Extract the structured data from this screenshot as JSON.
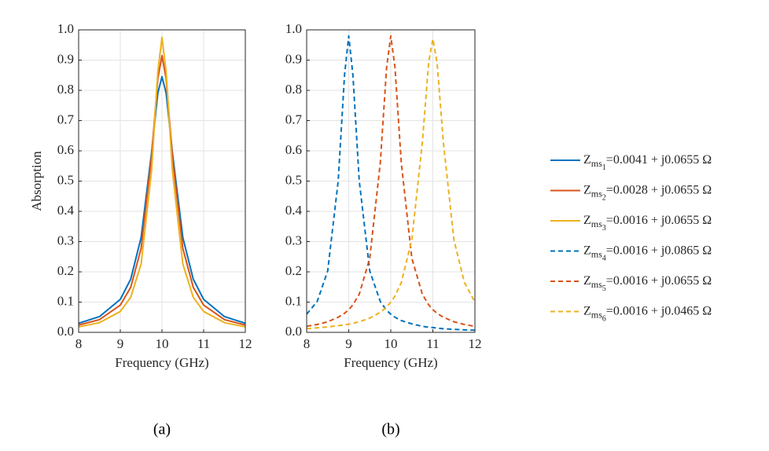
{
  "chart_data": [
    {
      "type": "line",
      "caption": "(a)",
      "xlabel": "Frequency (GHz)",
      "ylabel": "Absorption",
      "x": [
        8,
        8.5,
        9,
        9.25,
        9.5,
        9.75,
        9.9,
        10,
        10.1,
        10.25,
        10.5,
        10.75,
        11,
        11.5,
        12
      ],
      "series": [
        {
          "name": [
            "Z",
            "ms",
            "1",
            "=0.0041 + j0.0655 Ω"
          ],
          "color": "#0072BD",
          "dashed": false,
          "values": [
            0.03,
            0.052,
            0.109,
            0.176,
            0.314,
            0.594,
            0.791,
            0.845,
            0.791,
            0.594,
            0.314,
            0.176,
            0.109,
            0.052,
            0.03
          ]
        },
        {
          "name": [
            "Z",
            "ms",
            "2",
            "=0.0028 + j0.0655 Ω"
          ],
          "color": "#D95319",
          "dashed": false,
          "values": [
            0.024,
            0.042,
            0.09,
            0.149,
            0.278,
            0.582,
            0.838,
            0.915,
            0.838,
            0.582,
            0.278,
            0.149,
            0.09,
            0.042,
            0.024
          ]
        },
        {
          "name": [
            "Z",
            "ms",
            "3",
            "=0.0016 + j0.0655 Ω"
          ],
          "color": "#EDB120",
          "dashed": false,
          "values": [
            0.018,
            0.032,
            0.069,
            0.116,
            0.226,
            0.534,
            0.861,
            0.975,
            0.861,
            0.534,
            0.226,
            0.116,
            0.069,
            0.032,
            0.018
          ]
        }
      ],
      "xlim": [
        8,
        12
      ],
      "xticks": [
        8,
        9,
        10,
        11,
        12
      ],
      "ylim": [
        0,
        1
      ],
      "yticks": [
        {
          "value": 0,
          "label": "0.0"
        },
        0.1,
        0.2,
        0.3,
        0.4,
        0.5,
        0.6,
        0.7,
        0.8,
        0.9,
        {
          "value": 1,
          "label": "1.0"
        }
      ],
      "grid": true,
      "legend": true
    },
    {
      "type": "line",
      "caption": "(b)",
      "xlabel": "Frequency (GHz)",
      "x": [
        8,
        8.25,
        8.5,
        8.75,
        8.9,
        9,
        9.1,
        9.25,
        9.5,
        9.75,
        9.9,
        10,
        10.1,
        10.25,
        10.5,
        10.75,
        10.9,
        11,
        11.1,
        11.25,
        11.5,
        11.75,
        12
      ],
      "series": [
        {
          "name": [
            "Z",
            "ms",
            "4",
            "=0.0016 + j0.0865 Ω"
          ],
          "color": "#0072BD",
          "dashed": true,
          "values": [
            0.06,
            0.102,
            0.203,
            0.501,
            0.85,
            0.98,
            0.85,
            0.501,
            0.203,
            0.102,
            0.073,
            0.06,
            0.05,
            0.039,
            0.028,
            0.02,
            0.017,
            0.016,
            0.014,
            0.012,
            0.01,
            0.008,
            0.007
          ]
        },
        {
          "name": [
            "Z",
            "ms",
            "5",
            "=0.0016 + j0.0655 Ω"
          ],
          "color": "#D95319",
          "dashed": true,
          "values": [
            0.02,
            0.026,
            0.035,
            0.05,
            0.063,
            0.075,
            0.091,
            0.126,
            0.245,
            0.56,
            0.875,
            0.98,
            0.875,
            0.56,
            0.245,
            0.126,
            0.091,
            0.075,
            0.063,
            0.05,
            0.035,
            0.026,
            0.02
          ]
        },
        {
          "name": [
            "Z",
            "ms",
            "6",
            "=0.0016 + j0.0465 Ω"
          ],
          "color": "#EDB120",
          "dashed": true,
          "values": [
            0.012,
            0.015,
            0.018,
            0.022,
            0.025,
            0.027,
            0.03,
            0.035,
            0.047,
            0.066,
            0.084,
            0.1,
            0.12,
            0.165,
            0.306,
            0.628,
            0.892,
            0.97,
            0.892,
            0.628,
            0.306,
            0.165,
            0.1
          ]
        }
      ],
      "xlim": [
        8,
        12
      ],
      "xticks": [
        8,
        9,
        10,
        11,
        12
      ],
      "ylim": [
        0,
        1
      ],
      "yticks": [
        {
          "value": 0,
          "label": "0.0"
        },
        0.1,
        0.2,
        0.3,
        0.4,
        0.5,
        0.6,
        0.7,
        0.8,
        0.9,
        {
          "value": 1,
          "label": "1.0"
        }
      ],
      "grid": true,
      "legend": true
    }
  ]
}
